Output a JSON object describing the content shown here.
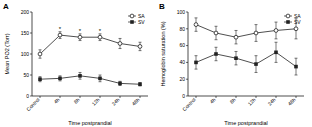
{
  "chart_data": [
    {
      "type": "line",
      "title": "A",
      "x_label": "Time postprandial",
      "y_label": "Mean PO2 (Torr)",
      "categories": [
        "Control",
        "4h",
        "8h",
        "12h",
        "24h",
        "48h"
      ],
      "ylim": [
        0,
        200
      ],
      "yticks": [
        0,
        50,
        100,
        150,
        200
      ],
      "legend": "upper right",
      "series": [
        {
          "name": "SA",
          "color": "#222222",
          "marker": "circle",
          "values": [
            100,
            145,
            140,
            140,
            125,
            118
          ],
          "errors": [
            10,
            8,
            8,
            8,
            12,
            10
          ]
        },
        {
          "name": "SV",
          "color": "#222222",
          "marker": "square",
          "values": [
            40,
            42,
            48,
            42,
            30,
            28
          ],
          "errors": [
            6,
            6,
            8,
            8,
            5,
            4
          ]
        }
      ],
      "annotations": [
        {
          "text": "*",
          "x": "4h"
        },
        {
          "text": "*",
          "x": "8h"
        },
        {
          "text": "*",
          "x": "12h"
        }
      ]
    },
    {
      "type": "line",
      "title": "B",
      "x_label": "Time postprandial",
      "y_label": "Hemoglobin saturation (%)",
      "categories": [
        "Control",
        "4h",
        "8h",
        "12h",
        "24h",
        "48h"
      ],
      "ylim": [
        0,
        100
      ],
      "yticks": [
        0,
        20,
        40,
        60,
        80,
        100
      ],
      "legend": "upper right",
      "series": [
        {
          "name": "SA",
          "color": "#222222",
          "marker": "circle",
          "values": [
            85,
            75,
            70,
            75,
            78,
            80
          ],
          "errors": [
            8,
            8,
            8,
            10,
            10,
            12
          ]
        },
        {
          "name": "SV",
          "color": "#222222",
          "marker": "square",
          "values": [
            40,
            50,
            45,
            38,
            52,
            35
          ],
          "errors": [
            8,
            8,
            8,
            10,
            12,
            10
          ]
        }
      ]
    }
  ]
}
